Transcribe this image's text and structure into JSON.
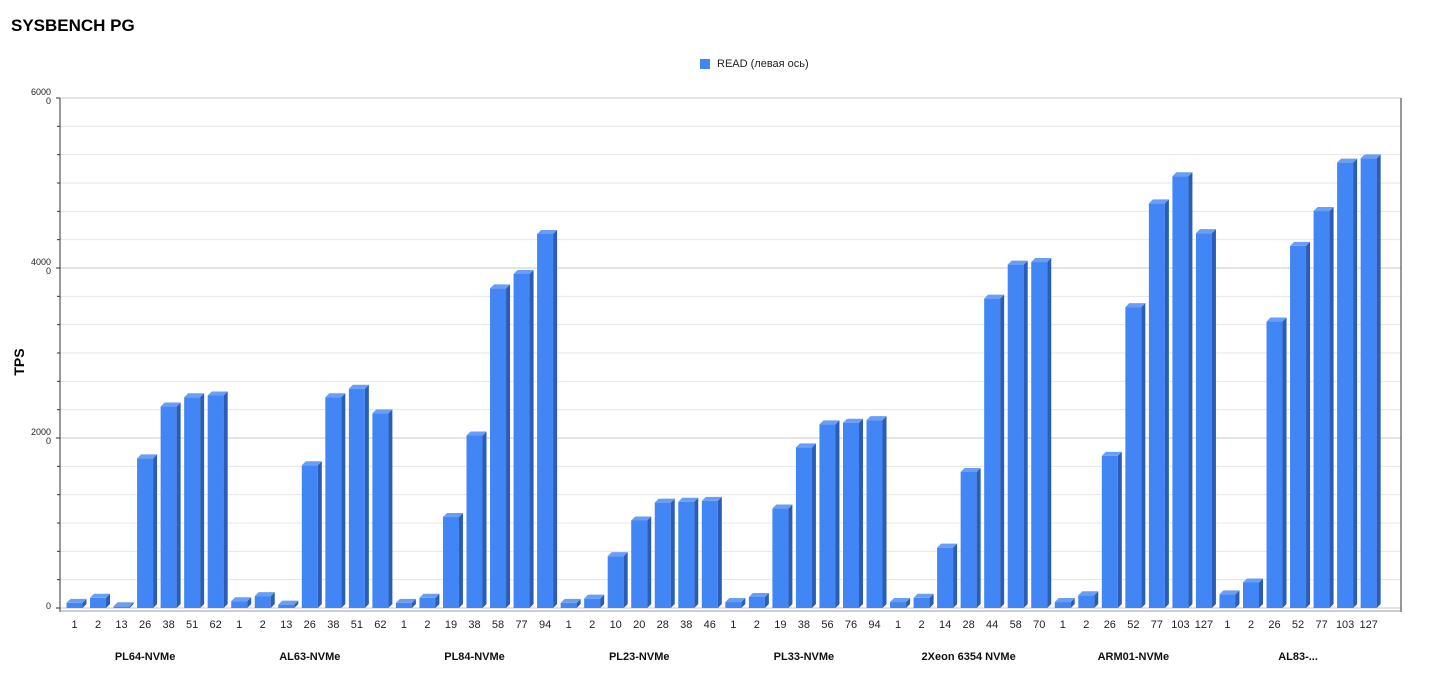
{
  "chart_data": {
    "type": "bar",
    "title": "SYSBENCH PG",
    "ylabel": "TPS",
    "ylim": [
      0,
      6000
    ],
    "y_ticks": [
      {
        "value": 0,
        "line1": "0",
        "line2": ""
      },
      {
        "value": 2000,
        "line1": "2000",
        "line2": "0"
      },
      {
        "value": 4000,
        "line1": "4000",
        "line2": "0"
      },
      {
        "value": 6000,
        "line1": "6000",
        "line2": "0"
      }
    ],
    "legend": {
      "position": "top-center"
    },
    "series": [
      {
        "name": "READ (левая ось)",
        "color": "#4285f4"
      }
    ],
    "groups": [
      {
        "name": "PL64-NVMe",
        "bars": [
          {
            "x": "1",
            "y": 60
          },
          {
            "x": "2",
            "y": 120
          },
          {
            "x": "13",
            "y": 20
          },
          {
            "x": "26",
            "y": 1760
          },
          {
            "x": "38",
            "y": 2370
          },
          {
            "x": "51",
            "y": 2480
          },
          {
            "x": "62",
            "y": 2500
          }
        ]
      },
      {
        "name": "AL63-NVMe",
        "bars": [
          {
            "x": "1",
            "y": 80
          },
          {
            "x": "2",
            "y": 140
          },
          {
            "x": "13",
            "y": 40
          },
          {
            "x": "26",
            "y": 1680
          },
          {
            "x": "38",
            "y": 2480
          },
          {
            "x": "51",
            "y": 2580
          },
          {
            "x": "62",
            "y": 2290
          }
        ]
      },
      {
        "name": "PL84-NVMe",
        "bars": [
          {
            "x": "1",
            "y": 60
          },
          {
            "x": "2",
            "y": 120
          },
          {
            "x": "19",
            "y": 1070
          },
          {
            "x": "38",
            "y": 2030
          },
          {
            "x": "58",
            "y": 3760
          },
          {
            "x": "77",
            "y": 3930
          },
          {
            "x": "94",
            "y": 4400
          }
        ]
      },
      {
        "name": "PL23-NVMe",
        "bars": [
          {
            "x": "1",
            "y": 60
          },
          {
            "x": "2",
            "y": 110
          },
          {
            "x": "10",
            "y": 610
          },
          {
            "x": "20",
            "y": 1030
          },
          {
            "x": "28",
            "y": 1240
          },
          {
            "x": "38",
            "y": 1250
          },
          {
            "x": "46",
            "y": 1260
          }
        ]
      },
      {
        "name": "PL33-NVMe",
        "bars": [
          {
            "x": "1",
            "y": 70
          },
          {
            "x": "2",
            "y": 130
          },
          {
            "x": "19",
            "y": 1170
          },
          {
            "x": "38",
            "y": 1890
          },
          {
            "x": "56",
            "y": 2160
          },
          {
            "x": "76",
            "y": 2180
          },
          {
            "x": "94",
            "y": 2210
          }
        ]
      },
      {
        "name": "2Xeon 6354 NVMe",
        "bars": [
          {
            "x": "1",
            "y": 70
          },
          {
            "x": "2",
            "y": 120
          },
          {
            "x": "14",
            "y": 710
          },
          {
            "x": "28",
            "y": 1600
          },
          {
            "x": "44",
            "y": 3640
          },
          {
            "x": "58",
            "y": 4040
          },
          {
            "x": "70",
            "y": 4070
          }
        ]
      },
      {
        "name": "ARM01-NVMe",
        "bars": [
          {
            "x": "1",
            "y": 70
          },
          {
            "x": "2",
            "y": 150
          },
          {
            "x": "26",
            "y": 1790
          },
          {
            "x": "52",
            "y": 3540
          },
          {
            "x": "77",
            "y": 4760
          },
          {
            "x": "103",
            "y": 5080
          },
          {
            "x": "127",
            "y": 4410
          }
        ]
      },
      {
        "name": "AL83-...",
        "bars": [
          {
            "x": "1",
            "y": 160
          },
          {
            "x": "2",
            "y": 300
          },
          {
            "x": "26",
            "y": 3370
          },
          {
            "x": "52",
            "y": 4260
          },
          {
            "x": "77",
            "y": 4670
          },
          {
            "x": "103",
            "y": 5240
          },
          {
            "x": "127",
            "y": 5290
          }
        ]
      }
    ]
  }
}
